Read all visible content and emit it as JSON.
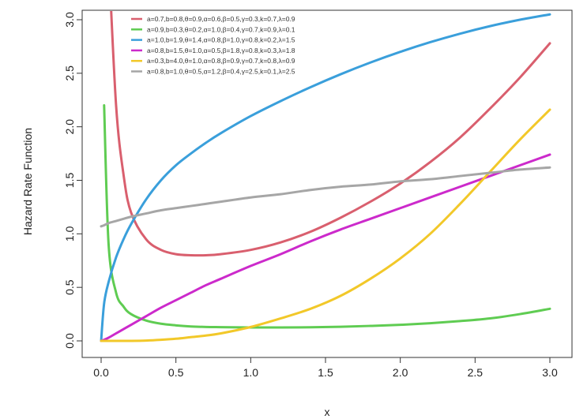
{
  "chart_data": {
    "type": "line",
    "xlabel": "x",
    "ylabel": "Hazard Rate Function",
    "xlim": [
      0,
      3
    ],
    "ylim": [
      0,
      3
    ],
    "x_ticks": [
      "0.0",
      "0.5",
      "1.0",
      "1.5",
      "2.0",
      "2.5",
      "3.0"
    ],
    "y_ticks": [
      "0.0",
      "0.5",
      "1.0",
      "1.5",
      "2.0",
      "2.5",
      "3.0"
    ],
    "grid": false,
    "legend_position": "top-left",
    "x": [
      0.0,
      0.02,
      0.05,
      0.1,
      0.15,
      0.2,
      0.3,
      0.4,
      0.5,
      0.6,
      0.7,
      0.8,
      1.0,
      1.2,
      1.4,
      1.6,
      1.8,
      2.0,
      2.2,
      2.4,
      2.6,
      2.8,
      3.0
    ],
    "series": [
      {
        "name": "a=0.7,b=0.8,θ=0.9,α=0.6,β=0.5,γ=0.3,k=0.7,λ=0.9",
        "color": "#D95F6E",
        "values": [
          null,
          null,
          3.6,
          2.2,
          1.55,
          1.2,
          0.95,
          0.85,
          0.81,
          0.8,
          0.8,
          0.81,
          0.85,
          0.92,
          1.02,
          1.15,
          1.3,
          1.47,
          1.67,
          1.9,
          2.17,
          2.46,
          2.78
        ]
      },
      {
        "name": "a=0.9,b=0.3,θ=0.2,α=1.0,β=0.4,γ=0.7,k=0.9,λ=0.1",
        "color": "#5FCC52",
        "values": [
          null,
          2.2,
          0.9,
          0.45,
          0.32,
          0.25,
          0.19,
          0.16,
          0.145,
          0.135,
          0.13,
          0.128,
          0.125,
          0.125,
          0.127,
          0.132,
          0.14,
          0.15,
          0.165,
          0.185,
          0.21,
          0.25,
          0.3
        ]
      },
      {
        "name": "a=1.0,b=1.9,θ=1.4,α=0.8,β=1.0,γ=0.8,k=0.2,λ=1.5",
        "color": "#3A9FDB",
        "values": [
          0.0,
          0.35,
          0.55,
          0.78,
          0.95,
          1.09,
          1.32,
          1.5,
          1.64,
          1.75,
          1.85,
          1.94,
          2.1,
          2.24,
          2.37,
          2.49,
          2.6,
          2.7,
          2.79,
          2.87,
          2.94,
          3.0,
          3.05
        ]
      },
      {
        "name": "a=0.8,b=1.5,θ=1.0,α=0.5,β=1.8,γ=0.8,k=0.3,λ=1.8",
        "color": "#CC2ACB",
        "values": [
          0.0,
          0.01,
          0.03,
          0.07,
          0.11,
          0.15,
          0.23,
          0.31,
          0.38,
          0.45,
          0.52,
          0.58,
          0.7,
          0.81,
          0.93,
          1.04,
          1.14,
          1.24,
          1.34,
          1.44,
          1.54,
          1.64,
          1.74
        ]
      },
      {
        "name": "a=0.3,b=4.0,θ=1.0,α=0.8,β=0.9,γ=0.7,k=0.8,λ=0.9",
        "color": "#F2C829",
        "values": [
          0.0,
          0.0,
          0.0,
          0.0,
          0.0,
          0.0,
          0.003,
          0.01,
          0.02,
          0.035,
          0.05,
          0.07,
          0.13,
          0.21,
          0.3,
          0.42,
          0.58,
          0.77,
          1.0,
          1.28,
          1.58,
          1.88,
          2.16
        ]
      },
      {
        "name": "a=0.8,b=1.0,θ=0.5,α=1.2,β=0.4,γ=2.5,k=0.1,λ=2.5",
        "color": "#A6A6A6",
        "values": [
          1.07,
          1.08,
          1.1,
          1.12,
          1.14,
          1.16,
          1.19,
          1.22,
          1.24,
          1.26,
          1.28,
          1.3,
          1.34,
          1.37,
          1.41,
          1.44,
          1.46,
          1.49,
          1.51,
          1.54,
          1.57,
          1.6,
          1.62
        ]
      }
    ]
  }
}
